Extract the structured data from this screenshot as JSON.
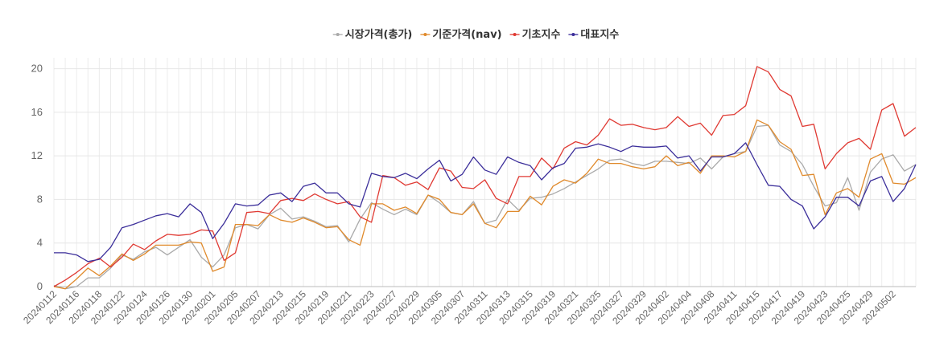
{
  "chart_data": {
    "type": "line",
    "title": "",
    "xlabel": "",
    "ylabel": "",
    "ylim": [
      0,
      21
    ],
    "y_ticks": [
      0,
      4,
      8,
      12,
      16,
      20
    ],
    "grid": true,
    "legend_position": "top-center",
    "x": [
      "20240112",
      "20240115",
      "20240116",
      "20240117",
      "20240118",
      "20240119",
      "20240122",
      "20240123",
      "20240124",
      "20240125",
      "20240126",
      "20240129",
      "20240130",
      "20240131",
      "20240201",
      "20240202",
      "20240205",
      "20240206",
      "20240207",
      "20240208",
      "20240213",
      "20240214",
      "20240215",
      "20240216",
      "20240219",
      "20240220",
      "20240221",
      "20240222",
      "20240223",
      "20240226",
      "20240227",
      "20240228",
      "20240229",
      "20240304",
      "20240305",
      "20240306",
      "20240307",
      "20240308",
      "20240311",
      "20240312",
      "20240313",
      "20240314",
      "20240315",
      "20240318",
      "20240319",
      "20240320",
      "20240321",
      "20240322",
      "20240325",
      "20240326",
      "20240327",
      "20240328",
      "20240329",
      "20240401",
      "20240402",
      "20240403",
      "20240404",
      "20240405",
      "20240408",
      "20240409",
      "20240411",
      "20240412",
      "20240415",
      "20240416",
      "20240417",
      "20240418",
      "20240419",
      "20240422",
      "20240423",
      "20240424",
      "20240425",
      "20240426",
      "20240429",
      "20240430",
      "20240502",
      "20240503",
      "20240507"
    ],
    "x_tick_labels": [
      "20240112",
      "20240116",
      "20240118",
      "20240122",
      "20240124",
      "20240126",
      "20240130",
      "20240201",
      "20240205",
      "20240207",
      "20240213",
      "20240215",
      "20240219",
      "20240221",
      "20240223",
      "20240227",
      "20240229",
      "20240305",
      "20240307",
      "20240311",
      "20240313",
      "20240315",
      "20240319",
      "20240321",
      "20240325",
      "20240327",
      "20240329",
      "20240402",
      "20240404",
      "20240408",
      "20240411",
      "20240415",
      "20240417",
      "20240419",
      "20240423",
      "20240425",
      "20240429",
      "20240502"
    ],
    "series": [
      {
        "name": "시장가격(총가)",
        "color": "#aaaaaa",
        "values": [
          0.1,
          -0.2,
          0.0,
          0.8,
          0.8,
          1.7,
          2.9,
          2.5,
          3.2,
          3.6,
          2.9,
          3.6,
          4.3,
          2.7,
          1.8,
          2.9,
          5.4,
          5.7,
          5.3,
          6.6,
          7.2,
          6.2,
          6.4,
          6.0,
          5.5,
          5.6,
          4.1,
          6.2,
          7.7,
          7.1,
          6.6,
          7.1,
          6.6,
          8.4,
          7.7,
          6.8,
          6.6,
          7.8,
          5.8,
          6.1,
          8.0,
          7.0,
          8.1,
          8.2,
          8.5,
          9.0,
          9.6,
          10.2,
          10.8,
          11.6,
          11.7,
          11.3,
          11.1,
          11.5,
          11.5,
          11.4,
          11.3,
          11.8,
          10.8,
          11.9,
          12.2,
          12.4,
          14.7,
          14.8,
          13.0,
          12.4,
          11.2,
          9.2,
          7.4,
          7.7,
          10.0,
          7.0,
          10.5,
          11.7,
          12.1,
          10.6,
          11.2
        ]
      },
      {
        "name": "기준가격(nav)",
        "color": "#e08a2c",
        "values": [
          0.0,
          -0.2,
          0.7,
          1.7,
          1.0,
          1.9,
          3.0,
          2.4,
          3.0,
          3.8,
          3.8,
          3.8,
          4.1,
          4.0,
          1.4,
          1.8,
          5.7,
          5.7,
          5.6,
          6.6,
          6.1,
          5.9,
          6.3,
          5.9,
          5.4,
          5.5,
          4.3,
          3.8,
          7.6,
          7.6,
          7.0,
          7.3,
          6.7,
          8.4,
          8.0,
          6.8,
          6.6,
          7.6,
          5.8,
          5.4,
          6.9,
          6.9,
          8.3,
          7.5,
          9.2,
          9.8,
          9.5,
          10.4,
          11.7,
          11.3,
          11.3,
          11.0,
          10.8,
          11.0,
          12.0,
          11.1,
          11.4,
          10.4,
          12.0,
          12.0,
          11.9,
          12.4,
          15.3,
          14.8,
          13.3,
          12.6,
          10.2,
          10.3,
          6.6,
          8.6,
          9.0,
          8.2,
          11.7,
          12.2,
          9.5,
          9.4,
          10.0
        ]
      },
      {
        "name": "기초지수",
        "color": "#e03a33",
        "values": [
          0.0,
          0.6,
          1.3,
          2.1,
          2.6,
          1.8,
          2.7,
          3.9,
          3.4,
          4.2,
          4.8,
          4.7,
          4.8,
          5.2,
          5.1,
          2.4,
          3.1,
          6.8,
          6.9,
          6.7,
          7.9,
          8.1,
          7.9,
          8.5,
          8.0,
          7.6,
          7.8,
          6.4,
          5.9,
          10.2,
          10.0,
          9.3,
          9.6,
          8.9,
          10.9,
          10.6,
          9.1,
          9.0,
          9.8,
          8.1,
          7.6,
          10.1,
          10.1,
          11.8,
          10.8,
          12.7,
          13.3,
          13.0,
          13.9,
          15.4,
          14.8,
          14.9,
          14.6,
          14.4,
          14.6,
          15.6,
          14.7,
          15.0,
          13.9,
          15.7,
          15.8,
          16.6,
          20.2,
          19.7,
          18.1,
          17.5,
          14.7,
          14.9,
          10.8,
          12.2,
          13.2,
          13.6,
          12.6,
          16.2,
          16.8,
          13.8,
          14.6
        ]
      },
      {
        "name": "대표지수",
        "color": "#3b2e9a",
        "values": [
          3.1,
          3.1,
          2.9,
          2.3,
          2.5,
          3.6,
          5.4,
          5.7,
          6.1,
          6.5,
          6.7,
          6.4,
          7.6,
          6.8,
          4.4,
          5.8,
          7.6,
          7.4,
          7.5,
          8.4,
          8.6,
          7.8,
          9.2,
          9.5,
          8.6,
          8.6,
          7.6,
          7.3,
          10.4,
          10.1,
          10.0,
          10.4,
          9.9,
          10.8,
          11.6,
          9.7,
          10.3,
          11.9,
          10.7,
          10.3,
          11.9,
          11.4,
          11.1,
          9.8,
          10.9,
          11.3,
          12.7,
          12.8,
          13.1,
          12.8,
          12.4,
          12.9,
          12.8,
          12.8,
          12.9,
          11.8,
          12.0,
          10.6,
          11.9,
          11.9,
          12.2,
          13.2,
          11.2,
          9.3,
          9.2,
          8.0,
          7.4,
          5.3,
          6.4,
          8.2,
          8.2,
          7.4,
          9.7,
          10.1,
          7.8,
          9.0,
          11.2
        ]
      }
    ]
  }
}
